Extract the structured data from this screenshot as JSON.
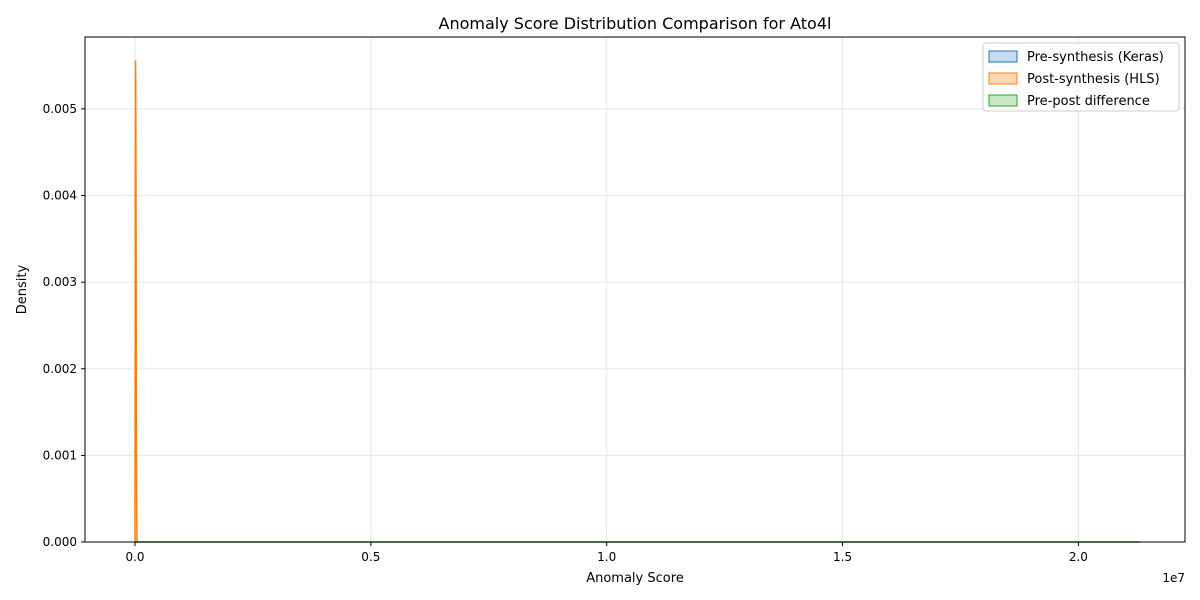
{
  "chart_data": {
    "type": "area",
    "title": "Anomaly Score Distribution Comparison for Ato4l",
    "xlabel": "Anomaly Score",
    "ylabel": "Density",
    "x_offset_label": "1e7",
    "xlim": [
      -1060000,
      22260000
    ],
    "ylim": [
      0,
      0.00583
    ],
    "x_scale": 10000000,
    "xticks": [
      0,
      5000000,
      10000000,
      15000000,
      20000000
    ],
    "xtick_labels": [
      "0.0",
      "0.5",
      "1.0",
      "1.5",
      "2.0"
    ],
    "yticks": [
      0,
      0.001,
      0.002,
      0.003,
      0.004,
      0.005
    ],
    "ytick_labels": [
      "0.000",
      "0.001",
      "0.002",
      "0.003",
      "0.004",
      "0.005"
    ],
    "grid": true,
    "legend_position": "top-right",
    "series": [
      {
        "name": "Pre-synthesis (Keras)",
        "color": "#1f77b4",
        "fill": "#c6dcee",
        "x": [
          0,
          10,
          20,
          40,
          80,
          150
        ],
        "y": [
          0,
          1e-05,
          0.0,
          0.0,
          0.0,
          0.0
        ]
      },
      {
        "name": "Post-synthesis (HLS)",
        "color": "#ff7f0e",
        "fill": "#ffd9b7",
        "x": [
          0,
          10,
          20,
          30,
          40,
          60,
          80,
          100,
          150,
          250
        ],
        "y": [
          0,
          0.0042,
          0.00556,
          0.0053,
          0.0042,
          0.0022,
          0.0009,
          0.0003,
          5e-05,
          0
        ]
      },
      {
        "name": "Pre-post difference",
        "color": "#2ca02c",
        "fill": "#c5e7c5",
        "x": [
          0,
          5000000,
          10000000,
          15000000,
          21300000
        ],
        "y": [
          2e-07,
          1e-07,
          1e-07,
          1e-07,
          1e-07
        ]
      }
    ]
  }
}
